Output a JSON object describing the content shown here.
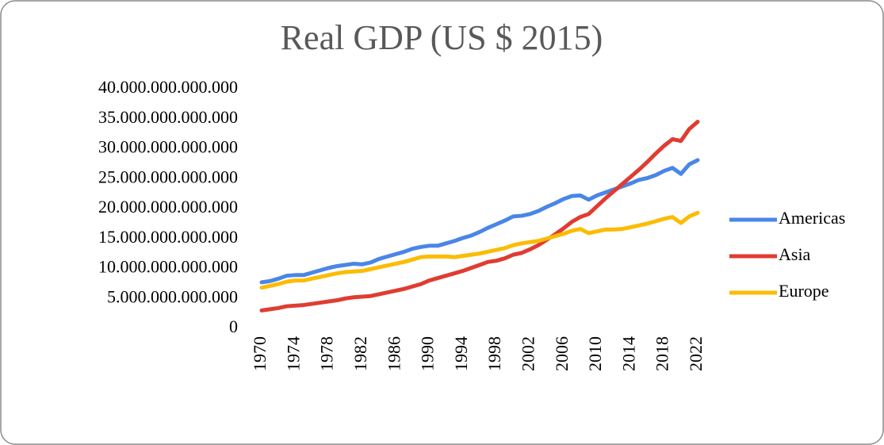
{
  "chart_data": {
    "type": "line",
    "title": "Real GDP (US $ 2015)",
    "x": [
      1970,
      1971,
      1972,
      1973,
      1974,
      1975,
      1976,
      1977,
      1978,
      1979,
      1980,
      1981,
      1982,
      1983,
      1984,
      1985,
      1986,
      1987,
      1988,
      1989,
      1990,
      1991,
      1992,
      1993,
      1994,
      1995,
      1996,
      1997,
      1998,
      1999,
      2000,
      2001,
      2002,
      2003,
      2004,
      2005,
      2006,
      2007,
      2008,
      2009,
      2010,
      2011,
      2012,
      2013,
      2014,
      2015,
      2016,
      2017,
      2018,
      2019,
      2020,
      2021,
      2022
    ],
    "xlim": [
      1970,
      2022
    ],
    "xticks": [
      1970,
      1974,
      1978,
      1982,
      1986,
      1990,
      1994,
      1998,
      2002,
      2006,
      2010,
      2014,
      2018,
      2022
    ],
    "ylim": [
      0,
      40000000000000
    ],
    "yticks": [
      0,
      {
        "value": 5000000000000,
        "label": "5.000.000.000.000"
      },
      {
        "value": 10000000000000,
        "label": "10.000.000.000.000"
      },
      {
        "value": 15000000000000,
        "label": "15.000.000.000.000"
      },
      {
        "value": 20000000000000,
        "label": "20.000.000.000.000"
      },
      {
        "value": 25000000000000,
        "label": "25.000.000.000.000"
      },
      {
        "value": 30000000000000,
        "label": "30.000.000.000.000"
      },
      {
        "value": 35000000000000,
        "label": "35.000.000.000.000"
      },
      {
        "value": 40000000000000,
        "label": "40.000.000.000.000"
      }
    ],
    "grid": false,
    "legend": "right",
    "series": [
      {
        "name": "Americas",
        "color": "#4a86e8",
        "values": [
          7700000000000.0,
          7900000000000.0,
          8300000000000.0,
          8800000000000.0,
          8900000000000.0,
          8900000000000.0,
          9300000000000.0,
          9700000000000.0,
          10100000000000.0,
          10400000000000.0,
          10600000000000.0,
          10800000000000.0,
          10700000000000.0,
          11000000000000.0,
          11600000000000.0,
          12000000000000.0,
          12400000000000.0,
          12800000000000.0,
          13300000000000.0,
          13600000000000.0,
          13800000000000.0,
          13800000000000.0,
          14200000000000.0,
          14600000000000.0,
          15100000000000.0,
          15500000000000.0,
          16100000000000.0,
          16800000000000.0,
          17400000000000.0,
          18000000000000.0,
          18700000000000.0,
          18800000000000.0,
          19100000000000.0,
          19600000000000.0,
          20300000000000.0,
          20900000000000.0,
          21600000000000.0,
          22100000000000.0,
          22200000000000.0,
          21500000000000.0,
          22200000000000.0,
          22700000000000.0,
          23200000000000.0,
          23700000000000.0,
          24200000000000.0,
          24800000000000.0,
          25100000000000.0,
          25600000000000.0,
          26300000000000.0,
          26800000000000.0,
          25800000000000.0,
          27400000000000.0,
          28100000000000.0
        ]
      },
      {
        "name": "Asia",
        "color": "#e03c31",
        "values": [
          3000000000000.0,
          3200000000000.0,
          3400000000000.0,
          3700000000000.0,
          3800000000000.0,
          3900000000000.0,
          4100000000000.0,
          4300000000000.0,
          4500000000000.0,
          4700000000000.0,
          5000000000000.0,
          5200000000000.0,
          5300000000000.0,
          5400000000000.0,
          5700000000000.0,
          6000000000000.0,
          6300000000000.0,
          6600000000000.0,
          7000000000000.0,
          7400000000000.0,
          8000000000000.0,
          8400000000000.0,
          8800000000000.0,
          9200000000000.0,
          9600000000000.0,
          10100000000000.0,
          10600000000000.0,
          11100000000000.0,
          11300000000000.0,
          11700000000000.0,
          12300000000000.0,
          12600000000000.0,
          13200000000000.0,
          13900000000000.0,
          14800000000000.0,
          15700000000000.0,
          16700000000000.0,
          17800000000000.0,
          18600000000000.0,
          19100000000000.0,
          20400000000000.0,
          21700000000000.0,
          22900000000000.0,
          24100000000000.0,
          25300000000000.0,
          26500000000000.0,
          27800000000000.0,
          29200000000000.0,
          30500000000000.0,
          31600000000000.0,
          31300000000000.0,
          33300000000000.0,
          34500000000000.0
        ]
      },
      {
        "name": "Europe",
        "color": "#fbbc04",
        "values": [
          6800000000000.0,
          7100000000000.0,
          7400000000000.0,
          7800000000000.0,
          8000000000000.0,
          8000000000000.0,
          8300000000000.0,
          8600000000000.0,
          8900000000000.0,
          9200000000000.0,
          9400000000000.0,
          9500000000000.0,
          9600000000000.0,
          9900000000000.0,
          10200000000000.0,
          10500000000000.0,
          10800000000000.0,
          11100000000000.0,
          11500000000000.0,
          11900000000000.0,
          12000000000000.0,
          12000000000000.0,
          12000000000000.0,
          11900000000000.0,
          12100000000000.0,
          12300000000000.0,
          12500000000000.0,
          12800000000000.0,
          13100000000000.0,
          13400000000000.0,
          13900000000000.0,
          14200000000000.0,
          14400000000000.0,
          14600000000000.0,
          15000000000000.0,
          15400000000000.0,
          15800000000000.0,
          16300000000000.0,
          16600000000000.0,
          15900000000000.0,
          16200000000000.0,
          16500000000000.0,
          16500000000000.0,
          16600000000000.0,
          16900000000000.0,
          17200000000000.0,
          17500000000000.0,
          17900000000000.0,
          18300000000000.0,
          18600000000000.0,
          17600000000000.0,
          18700000000000.0,
          19300000000000.0
        ]
      }
    ]
  }
}
